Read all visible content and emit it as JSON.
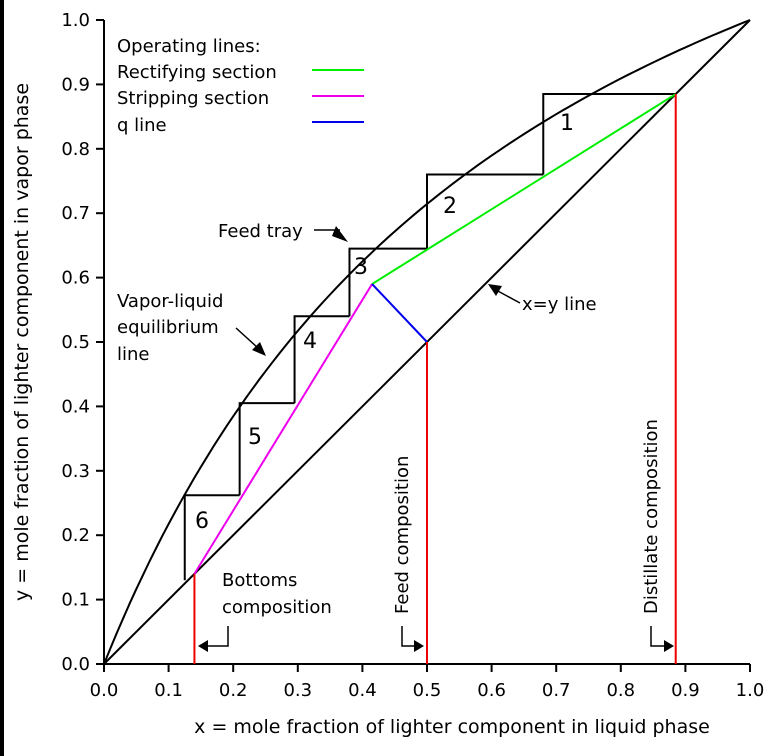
{
  "chart_data": {
    "type": "line",
    "xlabel": "x = mole fraction of lighter component in liquid phase",
    "ylabel": "y = mole fraction of lighter component in vapor phase",
    "xlim": [
      0,
      1
    ],
    "ylim": [
      0,
      1
    ],
    "x_ticks": [
      "0.0",
      "0.1",
      "0.2",
      "0.3",
      "0.4",
      "0.5",
      "0.6",
      "0.7",
      "0.8",
      "0.9",
      "1.0"
    ],
    "y_ticks": [
      "0.0",
      "0.1",
      "0.2",
      "0.3",
      "0.4",
      "0.5",
      "0.6",
      "0.7",
      "0.8",
      "0.9",
      "1.0"
    ],
    "legend": {
      "title": "Operating lines:",
      "placement": "top-left",
      "entries": [
        {
          "label": "Rectifying section",
          "color": "#00ee00"
        },
        {
          "label": "Stripping section",
          "color": "#ee00ee"
        },
        {
          "label": "q line",
          "color": "#0000ee"
        }
      ]
    },
    "series": [
      {
        "id": "xy",
        "color": "#000000",
        "points": [
          [
            0,
            0
          ],
          [
            1,
            1
          ]
        ]
      },
      {
        "id": "equilibrium",
        "color": "#000000",
        "alpha": 2.5
      },
      {
        "id": "rectifying",
        "color": "#00ee00",
        "points": [
          [
            0.415,
            0.59
          ],
          [
            0.885,
            0.885
          ]
        ]
      },
      {
        "id": "stripping",
        "color": "#ee00ee",
        "points": [
          [
            0.14,
            0.14
          ],
          [
            0.415,
            0.59
          ]
        ]
      },
      {
        "id": "q",
        "color": "#0000ee",
        "points": [
          [
            0.5,
            0.5
          ],
          [
            0.415,
            0.59
          ]
        ]
      }
    ],
    "steps": [
      {
        "label": "1",
        "x_top": 0.68,
        "y_top": 0.885,
        "y_bottom": 0.76
      },
      {
        "label": "2",
        "x_top": 0.5,
        "y_top": 0.76,
        "y_bottom": 0.645
      },
      {
        "label": "3",
        "x_top": 0.38,
        "y_top": 0.645,
        "y_bottom": 0.54
      },
      {
        "label": "4",
        "x_top": 0.295,
        "y_top": 0.54,
        "y_bottom": 0.405
      },
      {
        "label": "5",
        "x_top": 0.21,
        "y_top": 0.405,
        "y_bottom": 0.262
      },
      {
        "label": "6",
        "x_top": 0.125,
        "y_top": 0.262,
        "y_bottom": 0.13
      }
    ],
    "compositions": [
      {
        "label": "Bottoms composition",
        "x": 0.14,
        "color": "#ee0000"
      },
      {
        "label": "Feed composition",
        "x": 0.5,
        "color": "#ee0000"
      },
      {
        "label": "Distillate composition",
        "x": 0.885,
        "color": "#ee0000"
      }
    ],
    "annotations": {
      "feed_tray": "Feed tray",
      "vle_line1": "Vapor-liquid",
      "vle_line2": "equilibrium",
      "vle_line3": "line",
      "xy_line": "x=y line",
      "bottoms_line1": "Bottoms",
      "bottoms_line2": "composition"
    }
  }
}
